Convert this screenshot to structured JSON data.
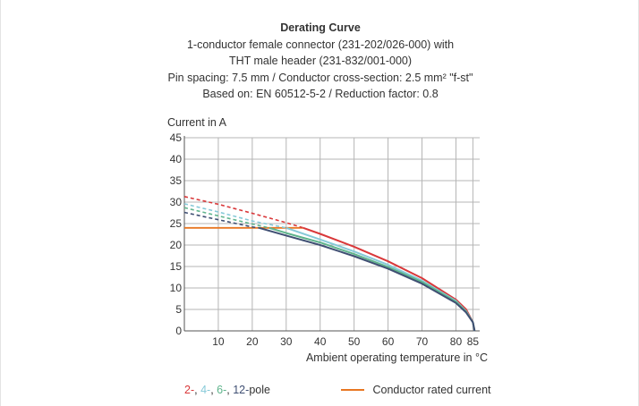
{
  "header": {
    "title": "Derating Curve",
    "lines": [
      "1-conductor female connector (231-202/026-000) with",
      "THT male header (231-832/001-000)",
      "Pin spacing: 7.5 mm / Conductor cross-section: 2.5 mm² \"f-st\"",
      "Based on: EN 60512-5-2 / Reduction factor: 0.8"
    ]
  },
  "chart_data": {
    "type": "line",
    "title": "Derating Curve",
    "xlabel": "Ambient operating temperature in °C",
    "ylabel": "Current in A",
    "xlim": [
      0,
      87
    ],
    "ylim": [
      0,
      45
    ],
    "xticks": [
      10,
      20,
      30,
      40,
      50,
      60,
      70,
      80,
      85
    ],
    "yticks": [
      0,
      5,
      10,
      15,
      20,
      25,
      30,
      35,
      40,
      45
    ],
    "grid": true,
    "series": [
      {
        "name": "2-pole",
        "color": "#d9383a",
        "dashed_points": [
          [
            0,
            31.3
          ],
          [
            10,
            29.5
          ],
          [
            20,
            27.4
          ],
          [
            30,
            25.2
          ],
          [
            35,
            24.0
          ]
        ],
        "points": [
          [
            35,
            24.0
          ],
          [
            40,
            22.6
          ],
          [
            50,
            19.6
          ],
          [
            60,
            16.2
          ],
          [
            70,
            12.3
          ],
          [
            80,
            7.3
          ],
          [
            83,
            5.0
          ],
          [
            85,
            2.0
          ],
          [
            85.5,
            0
          ]
        ]
      },
      {
        "name": "4-pole",
        "color": "#86c9d8",
        "dashed_points": [
          [
            0,
            29.6
          ],
          [
            10,
            27.7
          ],
          [
            20,
            25.6
          ],
          [
            30,
            24.0
          ]
        ],
        "points": [
          [
            30,
            24.0
          ],
          [
            40,
            21.3
          ],
          [
            50,
            18.5
          ],
          [
            60,
            15.4
          ],
          [
            70,
            11.7
          ],
          [
            80,
            7.0
          ],
          [
            83,
            4.6
          ],
          [
            85,
            2.0
          ],
          [
            85.5,
            0
          ]
        ]
      },
      {
        "name": "6-pole",
        "color": "#5fb48c",
        "dashed_points": [
          [
            0,
            28.7
          ],
          [
            10,
            26.8
          ],
          [
            20,
            24.9
          ],
          [
            25,
            24.0
          ]
        ],
        "points": [
          [
            25,
            24.0
          ],
          [
            30,
            22.8
          ],
          [
            40,
            20.6
          ],
          [
            50,
            17.9
          ],
          [
            60,
            14.9
          ],
          [
            70,
            11.4
          ],
          [
            80,
            6.8
          ],
          [
            83,
            4.5
          ],
          [
            85,
            2.0
          ],
          [
            85.5,
            0
          ]
        ]
      },
      {
        "name": "12-pole",
        "color": "#3f4f73",
        "dashed_points": [
          [
            0,
            27.6
          ],
          [
            10,
            25.9
          ],
          [
            20,
            24.2
          ],
          [
            22,
            24.0
          ]
        ],
        "points": [
          [
            22,
            24.0
          ],
          [
            30,
            22.2
          ],
          [
            40,
            20.0
          ],
          [
            50,
            17.4
          ],
          [
            60,
            14.5
          ],
          [
            70,
            11.0
          ],
          [
            80,
            6.5
          ],
          [
            83,
            4.3
          ],
          [
            85,
            2.0
          ],
          [
            85.5,
            0
          ]
        ]
      },
      {
        "name": "Conductor rated current",
        "color": "#e87722",
        "points": [
          [
            0,
            24.0
          ],
          [
            35,
            24.0
          ]
        ]
      }
    ]
  },
  "legend": {
    "pole_items": [
      {
        "text": "2-",
        "color": "#d9383a"
      },
      {
        "text": ", ",
        "color": "#333333"
      },
      {
        "text": "4-",
        "color": "#86c9d8"
      },
      {
        "text": ", ",
        "color": "#333333"
      },
      {
        "text": "6-",
        "color": "#5fb48c"
      },
      {
        "text": ", ",
        "color": "#333333"
      },
      {
        "text": "12-",
        "color": "#3f4f73"
      },
      {
        "text": "pole",
        "color": "#333333"
      }
    ],
    "rated_label": "Conductor rated current",
    "rated_color": "#e87722"
  }
}
